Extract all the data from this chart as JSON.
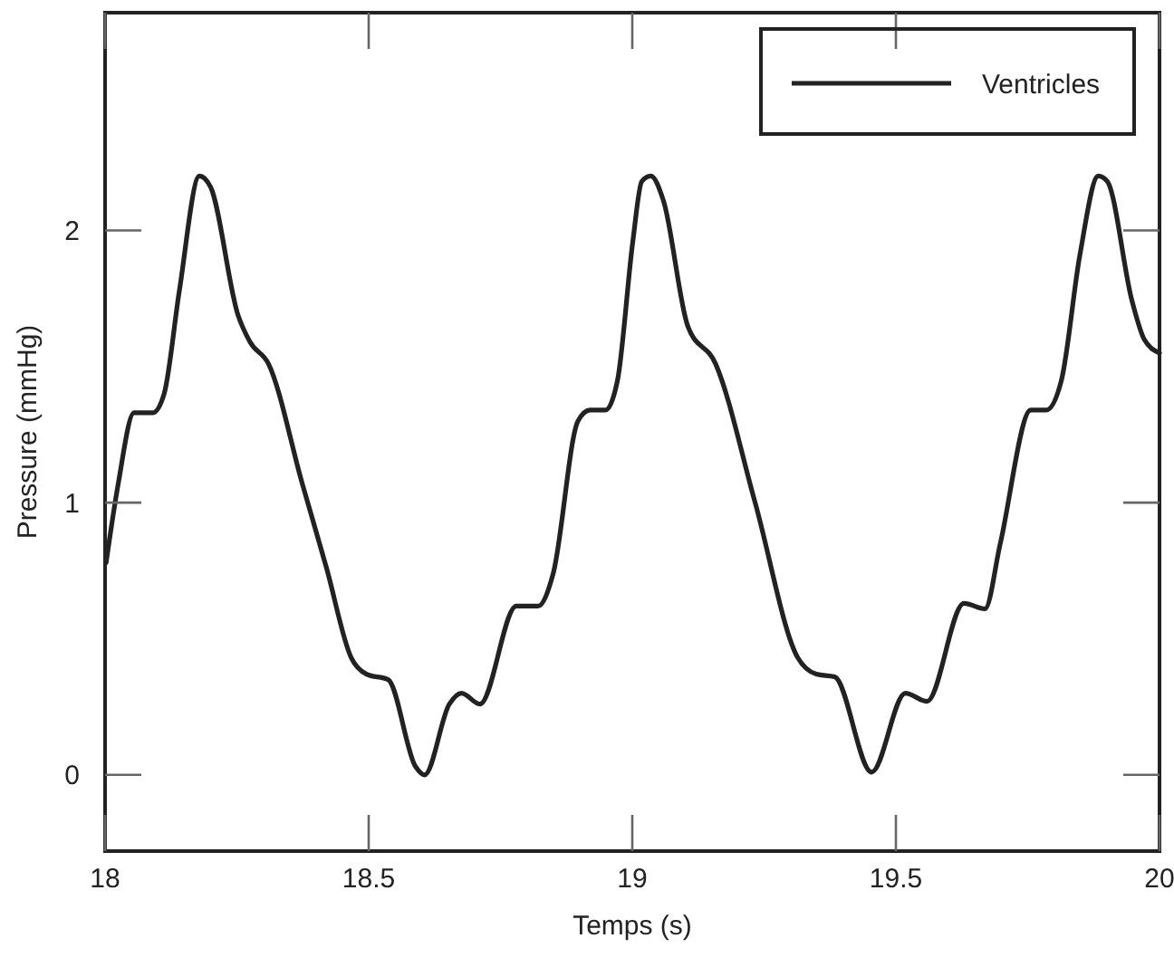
{
  "chart_data": {
    "type": "line",
    "xlabel": "Temps (s)",
    "ylabel": "Pressure (mmHg)",
    "xlim": [
      18,
      20
    ],
    "ylim": [
      -0.28,
      2.8
    ],
    "xticks": [
      18,
      18.5,
      19,
      19.5,
      20
    ],
    "yticks": [
      0,
      1,
      2
    ],
    "grid": false,
    "legend": "top right",
    "line_style": "solid",
    "marker": "none",
    "series": [
      {
        "name": "Ventricles",
        "color": "#222222",
        "x": [
          18.002,
          18.025,
          18.055,
          18.09,
          18.112,
          18.141,
          18.179,
          18.2,
          18.252,
          18.275,
          18.31,
          18.374,
          18.42,
          18.467,
          18.496,
          18.537,
          18.589,
          18.606,
          18.653,
          18.676,
          18.711,
          18.78,
          18.821,
          18.85,
          18.897,
          18.92,
          18.949,
          18.972,
          19.001,
          19.018,
          19.035,
          19.059,
          19.105,
          19.158,
          19.233,
          19.314,
          19.349,
          19.384,
          19.454,
          19.518,
          19.559,
          19.629,
          19.669,
          19.698,
          19.756,
          19.785,
          19.814,
          19.849,
          19.884,
          19.901,
          19.948,
          19.971,
          20.0
        ],
        "values": [
          0.78,
          1.07,
          1.33,
          1.33,
          1.4,
          1.78,
          2.2,
          2.16,
          1.69,
          1.59,
          1.51,
          1.07,
          0.76,
          0.43,
          0.37,
          0.35,
          0.03,
          0.0,
          0.26,
          0.3,
          0.26,
          0.62,
          0.62,
          0.74,
          1.3,
          1.34,
          1.34,
          1.45,
          1.96,
          2.18,
          2.2,
          2.11,
          1.65,
          1.51,
          1.0,
          0.43,
          0.37,
          0.36,
          0.01,
          0.3,
          0.27,
          0.63,
          0.61,
          0.85,
          1.34,
          1.34,
          1.45,
          1.91,
          2.2,
          2.18,
          1.74,
          1.6,
          1.55
        ]
      }
    ]
  }
}
